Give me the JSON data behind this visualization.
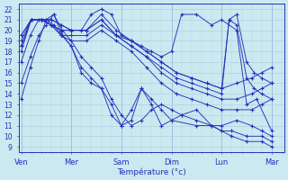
{
  "xlabel": "Température (°c)",
  "bg_color": "#cce8f0",
  "grid_color": "#aad4e0",
  "line_color": "#2233bb",
  "ylim": [
    8.5,
    22.5
  ],
  "yticks": [
    9,
    10,
    11,
    12,
    13,
    14,
    15,
    16,
    17,
    18,
    19,
    20,
    21,
    22
  ],
  "xtick_labels": [
    "Ven",
    "Mer",
    "Sam",
    "Dim",
    "Lun",
    "Mar"
  ],
  "xtick_positions": [
    0,
    1,
    2,
    3,
    4,
    5
  ],
  "series": [
    {
      "x": [
        0.0,
        0.18,
        0.35,
        0.5,
        0.65,
        0.82,
        1.0,
        1.2,
        1.4,
        1.6,
        1.8,
        2.0,
        2.2,
        2.4,
        2.6,
        2.8,
        3.0,
        3.2,
        3.5,
        3.8,
        4.0,
        4.2,
        4.5,
        4.8,
        5.0
      ],
      "y": [
        13.5,
        16.5,
        19.0,
        21.0,
        21.5,
        19.5,
        18.5,
        16.0,
        15.0,
        14.5,
        12.0,
        11.0,
        12.5,
        14.5,
        13.0,
        11.0,
        11.5,
        12.0,
        12.5,
        11.0,
        10.5,
        10.0,
        9.5,
        9.5,
        9.0
      ]
    },
    {
      "x": [
        0.0,
        0.18,
        0.35,
        0.5,
        0.65,
        0.82,
        1.0,
        1.2,
        1.4,
        1.6,
        1.8,
        2.0,
        2.2,
        2.4,
        2.6,
        2.8,
        3.0,
        3.2,
        3.5,
        3.8,
        4.0,
        4.2,
        4.5,
        4.8,
        5.0
      ],
      "y": [
        15.0,
        17.5,
        19.5,
        20.5,
        21.5,
        20.0,
        19.0,
        17.5,
        16.5,
        15.5,
        13.5,
        12.0,
        11.0,
        11.5,
        12.5,
        13.0,
        12.5,
        12.0,
        11.5,
        11.0,
        10.5,
        10.5,
        10.0,
        10.0,
        9.5
      ]
    },
    {
      "x": [
        0.0,
        0.18,
        0.35,
        0.5,
        0.65,
        0.82,
        1.0,
        1.2,
        1.4,
        1.6,
        1.8,
        2.0,
        2.2,
        2.4,
        2.6,
        2.8,
        3.0,
        3.5,
        4.0,
        4.3,
        4.6,
        4.8,
        5.0
      ],
      "y": [
        17.0,
        19.5,
        21.0,
        21.0,
        20.5,
        19.5,
        18.5,
        16.5,
        15.5,
        14.5,
        13.0,
        11.0,
        11.5,
        14.5,
        13.5,
        12.5,
        11.5,
        11.0,
        11.0,
        11.5,
        11.0,
        10.5,
        10.0
      ]
    },
    {
      "x": [
        0.0,
        0.2,
        0.4,
        0.6,
        0.8,
        1.0,
        1.3,
        1.6,
        1.9,
        2.2,
        2.5,
        2.8,
        3.1,
        3.4,
        3.7,
        4.0,
        4.3,
        4.6,
        4.8,
        5.0
      ],
      "y": [
        18.5,
        21.0,
        21.0,
        20.5,
        19.5,
        19.0,
        19.0,
        20.0,
        19.0,
        18.0,
        16.5,
        15.0,
        14.0,
        13.5,
        13.0,
        12.5,
        12.5,
        12.5,
        13.0,
        13.5
      ]
    },
    {
      "x": [
        0.0,
        0.2,
        0.4,
        0.6,
        0.8,
        1.0,
        1.3,
        1.6,
        1.9,
        2.2,
        2.5,
        2.8,
        3.1,
        3.4,
        3.7,
        4.0,
        4.3,
        4.6,
        4.8,
        5.0
      ],
      "y": [
        19.0,
        21.0,
        21.0,
        20.5,
        19.5,
        19.5,
        19.5,
        20.5,
        19.5,
        18.5,
        17.5,
        16.0,
        15.0,
        14.5,
        14.0,
        13.5,
        13.5,
        14.0,
        14.5,
        15.0
      ]
    },
    {
      "x": [
        0.0,
        0.2,
        0.4,
        0.6,
        0.8,
        1.0,
        1.3,
        1.6,
        1.9,
        2.2,
        2.5,
        2.8,
        3.1,
        3.4,
        3.7,
        4.0,
        4.3,
        4.6,
        4.8,
        5.0
      ],
      "y": [
        19.5,
        21.0,
        21.0,
        20.5,
        20.0,
        20.0,
        20.0,
        21.0,
        19.5,
        19.0,
        18.0,
        17.0,
        16.0,
        15.5,
        15.0,
        14.5,
        15.0,
        15.5,
        16.0,
        16.5
      ]
    },
    {
      "x": [
        0.0,
        0.2,
        0.4,
        0.6,
        0.8,
        1.0,
        1.3,
        1.6,
        1.9,
        2.2,
        2.5,
        2.8,
        3.1,
        3.4,
        3.7,
        4.0,
        4.15,
        4.3,
        4.5,
        4.65,
        4.8,
        5.0
      ],
      "y": [
        18.0,
        21.0,
        21.0,
        20.5,
        20.0,
        20.0,
        20.0,
        21.0,
        19.5,
        18.5,
        17.5,
        16.5,
        15.5,
        15.0,
        14.5,
        14.0,
        21.0,
        20.5,
        15.5,
        14.5,
        14.0,
        13.5
      ]
    },
    {
      "x": [
        0.0,
        0.2,
        0.4,
        0.6,
        0.8,
        1.0,
        1.3,
        1.6,
        1.9,
        2.2,
        2.5,
        2.8,
        3.1,
        3.4,
        3.7,
        4.0,
        4.15,
        4.3,
        4.5,
        4.65,
        4.8,
        5.0
      ],
      "y": [
        19.5,
        21.0,
        21.0,
        21.0,
        20.5,
        20.0,
        20.0,
        21.5,
        20.0,
        19.0,
        18.0,
        17.0,
        16.0,
        15.5,
        15.0,
        14.5,
        21.0,
        21.5,
        17.0,
        16.0,
        15.5,
        15.0
      ]
    },
    {
      "x": [
        0.0,
        0.2,
        0.4,
        0.6,
        0.8,
        1.0,
        1.2,
        1.4,
        1.6,
        1.8,
        2.0,
        2.2,
        2.4,
        2.6,
        2.8,
        3.0,
        3.2,
        3.5,
        3.8,
        4.0,
        4.3,
        4.5,
        4.7,
        5.0
      ],
      "y": [
        18.5,
        21.0,
        21.0,
        21.0,
        20.5,
        20.0,
        20.0,
        21.5,
        22.0,
        21.5,
        19.5,
        19.0,
        18.5,
        18.0,
        17.5,
        18.0,
        21.5,
        21.5,
        20.5,
        21.0,
        20.0,
        13.0,
        13.5,
        10.5
      ]
    }
  ]
}
